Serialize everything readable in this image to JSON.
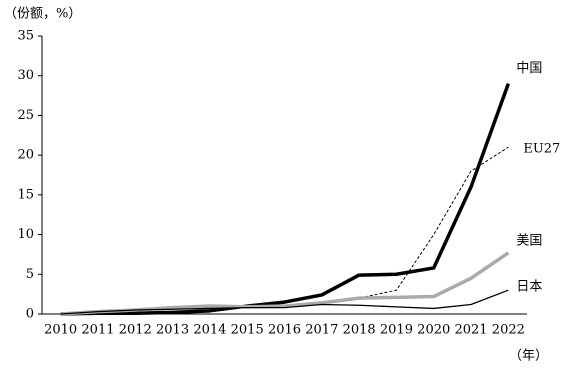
{
  "chart_data": {
    "type": "line",
    "y_label": "（份额，%）",
    "x_label": "（年）",
    "categories": [
      "2010",
      "2011",
      "2012",
      "2013",
      "2014",
      "2015",
      "2016",
      "2017",
      "2018",
      "2019",
      "2020",
      "2021",
      "2022"
    ],
    "ylim": [
      0,
      35
    ],
    "yticks": [
      0,
      5,
      10,
      15,
      20,
      25,
      30,
      35
    ],
    "series": [
      {
        "name": "中国",
        "color": "#000000",
        "line_style": "solid",
        "values": [
          0,
          0.1,
          0.1,
          0.2,
          0.4,
          1.0,
          1.5,
          2.4,
          4.9,
          5.0,
          5.8,
          16,
          29
        ]
      },
      {
        "name": "EU27",
        "color": "#000000",
        "line_style": "dashed",
        "values": [
          0,
          0.2,
          0.4,
          0.6,
          0.8,
          0.9,
          1.0,
          1.3,
          2.0,
          3.0,
          10,
          18,
          21
        ]
      },
      {
        "name": "美国",
        "color": "#aaaaaa",
        "line_style": "solid",
        "values": [
          0,
          0.3,
          0.5,
          0.8,
          1.0,
          0.9,
          1.0,
          1.4,
          2.0,
          2.1,
          2.2,
          4.5,
          7.7
        ]
      },
      {
        "name": "日本",
        "color": "#000000",
        "line_style": "solid",
        "values": [
          0,
          0.3,
          0.5,
          0.6,
          0.7,
          0.8,
          0.8,
          1.2,
          1.1,
          0.9,
          0.7,
          1.2,
          3.0
        ]
      }
    ]
  }
}
